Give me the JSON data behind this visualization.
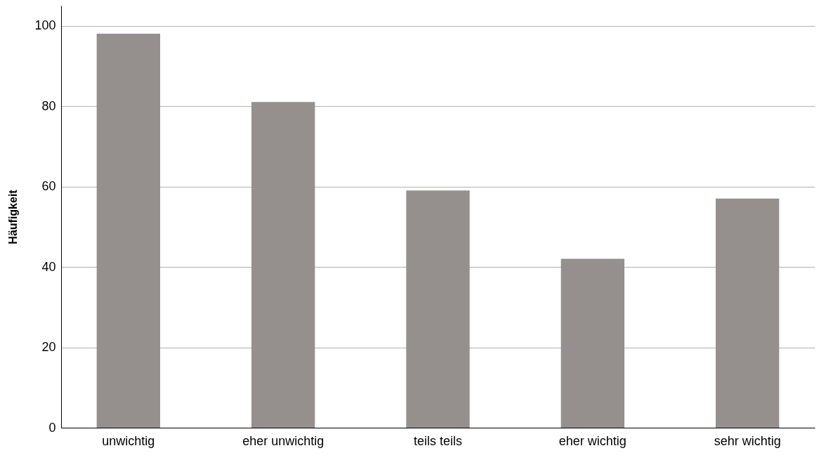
{
  "chart_data": {
    "type": "bar",
    "ylabel": "Häufigkeit",
    "categories": [
      "unwichtig",
      "eher unwichtig",
      "teils teils",
      "eher wichtig",
      "sehr wichtig"
    ],
    "values": [
      98,
      81,
      59,
      42,
      57
    ],
    "color": "#958f8d",
    "ylim": [
      0,
      105
    ],
    "yticks": [
      0,
      20,
      40,
      60,
      80,
      100
    ],
    "grid": "y"
  }
}
